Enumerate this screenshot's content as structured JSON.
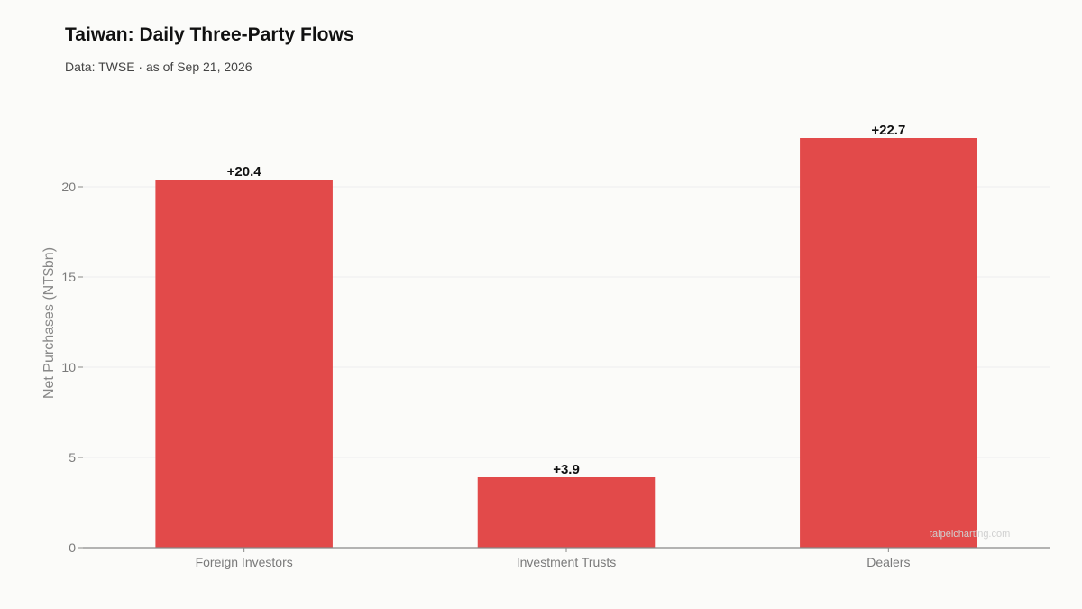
{
  "header": {
    "title": "Taiwan: Daily Three-Party Flows",
    "subtitle": "Data: TWSE · as of Sep 21, 2026"
  },
  "watermark": "taipeicharting.com",
  "colors": {
    "bar": "#e24a4a",
    "grid": "#eeeeee",
    "axis": "#888888"
  },
  "chart_data": {
    "type": "bar",
    "title": "Taiwan: Daily Three-Party Flows",
    "subtitle": "Data: TWSE · as of Sep 21, 2026",
    "xlabel": "",
    "ylabel": "Net Purchases (NT$bn)",
    "categories": [
      "Foreign Investors",
      "Investment Trusts",
      "Dealers"
    ],
    "values": [
      20.4,
      3.9,
      22.7
    ],
    "data_labels": [
      "+20.4",
      "+3.9",
      "+22.7"
    ],
    "ylim": [
      0,
      24.4
    ],
    "yticks": [
      0,
      5,
      10,
      15,
      20
    ],
    "grid": true,
    "legend": "none"
  }
}
